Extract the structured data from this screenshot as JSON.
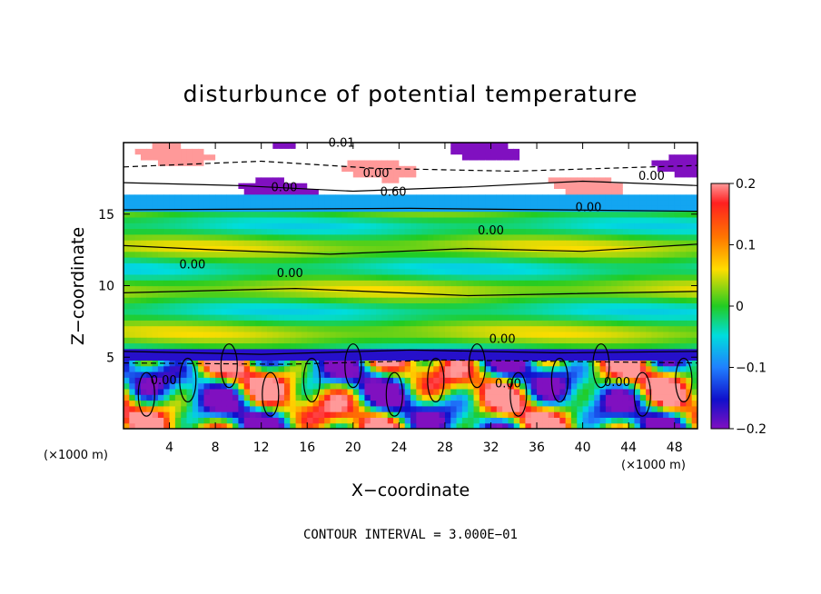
{
  "chart_data": {
    "type": "heatmap",
    "title": "disturbunce of potential temperature",
    "xlabel": "X−coordinate",
    "ylabel": "Z−coordinate",
    "x_unit_left": "(×1000 m)",
    "x_unit_right": "(×1000 m)",
    "xlim": [
      0,
      50
    ],
    "ylim": [
      0,
      20
    ],
    "x_ticks": [
      4,
      8,
      12,
      16,
      20,
      24,
      28,
      32,
      36,
      40,
      44,
      48
    ],
    "y_ticks": [
      5,
      10,
      15
    ],
    "colorbar": {
      "range": [
        -0.2,
        0.2
      ],
      "ticks": [
        0.2,
        0.1,
        0,
        -0.1,
        -0.2
      ],
      "tick_labels": [
        "0.2",
        "0.1",
        "0",
        "−0.1",
        "−0.2"
      ]
    },
    "contour_labels": [
      {
        "text": "0.00",
        "x": 14.0,
        "y": 16.6
      },
      {
        "text": "0.00",
        "x": 46.0,
        "y": 17.4
      },
      {
        "text": "0.00",
        "x": 32.0,
        "y": 13.6
      },
      {
        "text": "0.00",
        "x": 40.5,
        "y": 15.2
      },
      {
        "text": "0.00",
        "x": 6.0,
        "y": 11.2
      },
      {
        "text": "0.00",
        "x": 14.5,
        "y": 10.6
      },
      {
        "text": "0.00",
        "x": 33.0,
        "y": 6.0
      },
      {
        "text": "0.00",
        "x": 3.5,
        "y": 3.1
      },
      {
        "text": "0.00",
        "x": 33.5,
        "y": 2.9
      },
      {
        "text": "0.00",
        "x": 43.0,
        "y": 3.0
      },
      {
        "text": "0.60",
        "x": 23.5,
        "y": 16.3
      },
      {
        "text": "0.01",
        "x": 19.0,
        "y": 19.7
      },
      {
        "text": "0.00",
        "x": 22.0,
        "y": 17.6
      }
    ],
    "footer": "CONTOUR INTERVAL = 3.000E−01",
    "colors": {
      "strong_positive": "#ff3030",
      "positive": "#ffd000",
      "zero": "#30dd30",
      "negative": "#20a0ff",
      "strong_negative": "#8010c0"
    }
  }
}
